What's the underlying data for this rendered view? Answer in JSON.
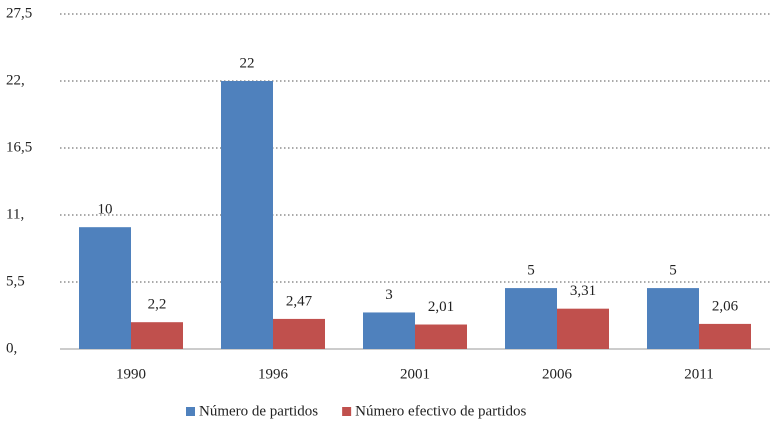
{
  "chart_data": {
    "type": "bar",
    "categories": [
      "1990",
      "1996",
      "2001",
      "2006",
      "2011"
    ],
    "series": [
      {
        "name": "Número de partidos",
        "color": "#4f81bd",
        "values": [
          10,
          22,
          3,
          5,
          5
        ]
      },
      {
        "name": "Número efectivo de partidos",
        "color": "#c0504d",
        "values": [
          2.2,
          2.47,
          2.01,
          3.31,
          2.06
        ],
        "value_labels": [
          "2,2",
          "2,47",
          "2,01",
          "3,31",
          "2,06"
        ]
      }
    ],
    "ylim": [
      0,
      27.5
    ],
    "yticks": [
      {
        "value": 0,
        "label": "0,"
      },
      {
        "value": 5.5,
        "label": "5,5"
      },
      {
        "value": 11,
        "label": "11,"
      },
      {
        "value": 16.5,
        "label": "16,5"
      },
      {
        "value": 22,
        "label": "22,"
      },
      {
        "value": 27.5,
        "label": "27,5"
      }
    ],
    "grid": true,
    "legend": "bottom"
  }
}
